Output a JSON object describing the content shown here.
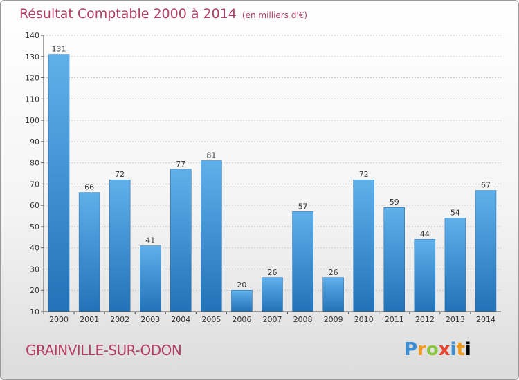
{
  "chart_data": {
    "type": "bar",
    "title": "Résultat Comptable 2000 à 2014",
    "subtitle": "(en milliers d'€)",
    "categories": [
      "2000",
      "2001",
      "2002",
      "2003",
      "2004",
      "2005",
      "2006",
      "2007",
      "2008",
      "2009",
      "2010",
      "2011",
      "2012",
      "2013",
      "2014"
    ],
    "values": [
      131,
      66,
      72,
      41,
      77,
      81,
      20,
      26,
      57,
      26,
      72,
      59,
      44,
      54,
      67
    ],
    "ylim": [
      10,
      140
    ],
    "yticks": [
      10,
      20,
      30,
      40,
      50,
      60,
      70,
      80,
      90,
      100,
      110,
      120,
      130,
      140
    ],
    "xlabel": "",
    "ylabel": "",
    "grid": true,
    "bar_color": "#2f86cc"
  },
  "footer": {
    "city": "GRAINVILLE-SUR-ODON",
    "logo_letters": [
      "P",
      "r",
      "o",
      "x",
      "i",
      "t",
      "i"
    ]
  }
}
